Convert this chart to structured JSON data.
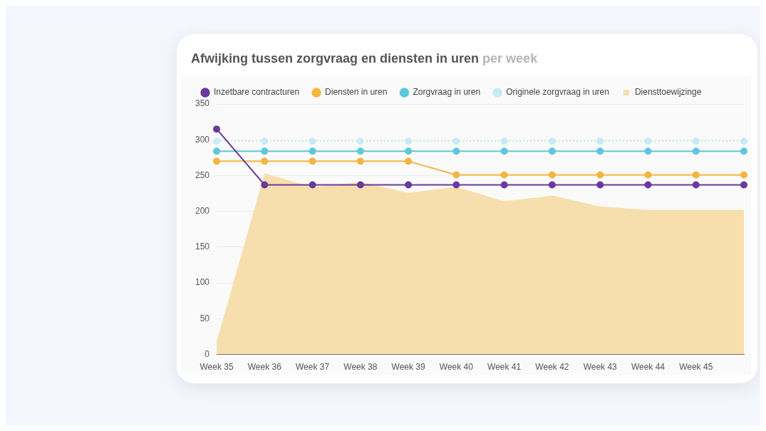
{
  "chart_data": {
    "type": "line",
    "title": "Afwijking tussen zorgvraag en diensten in uren",
    "subtitle": "per week",
    "categories": [
      "Week 35",
      "Week 36",
      "Week 37",
      "Week 38",
      "Week 39",
      "Week 40",
      "Week 41",
      "Week 42",
      "Week 43",
      "Week 44",
      "Week 45",
      null
    ],
    "series": [
      {
        "name": "Inzetbare contracturen",
        "color": "#6a3a9c",
        "values": [
          315,
          237,
          237,
          237,
          237,
          237,
          237,
          237,
          237,
          237,
          237,
          237
        ]
      },
      {
        "name": "Diensten in uren",
        "color": "#f3b63f",
        "values": [
          270,
          270,
          270,
          270,
          270,
          251,
          251,
          251,
          251,
          251,
          251,
          251
        ]
      },
      {
        "name": "Zorgvraag in uren",
        "color": "#5bc8dc",
        "values": [
          284,
          284,
          284,
          284,
          284,
          284,
          284,
          284,
          284,
          284,
          284,
          284
        ]
      },
      {
        "name": "Originele zorgvraag in uren",
        "color": "#c6ecf3",
        "line_style": "dotted",
        "values": [
          298,
          298,
          298,
          298,
          298,
          298,
          298,
          298,
          298,
          298,
          298,
          298
        ]
      },
      {
        "name": "Diensttoewijzinge",
        "type": "area",
        "marker": "none",
        "color": "#f7dfad",
        "values": [
          18,
          253,
          234,
          241,
          226,
          234,
          214,
          222,
          207,
          202,
          202,
          202
        ]
      }
    ],
    "ylim": [
      0,
      350
    ],
    "yticks": [
      0,
      50,
      100,
      150,
      200,
      250,
      300,
      350
    ],
    "grid": "y",
    "legend": "top left",
    "marker": "circle"
  }
}
